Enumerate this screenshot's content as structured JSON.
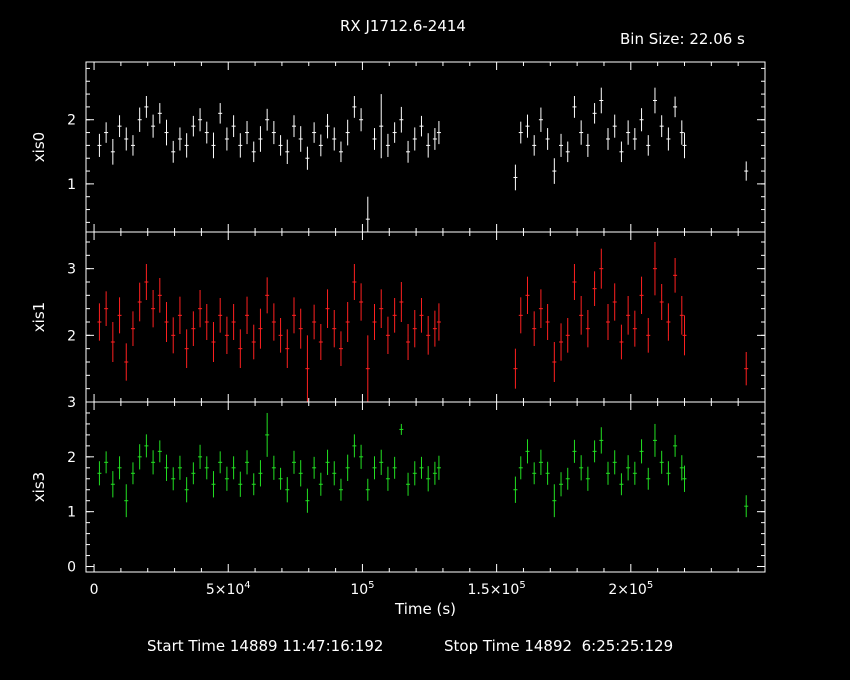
{
  "title": "RX J1712.6-2414",
  "bin_size": "Bin Size: 22.06 s",
  "footer": {
    "start": "Start Time 14889 11:47:16:192",
    "stop": "Stop Time 14892  6:25:25:129"
  },
  "chart_data": {
    "type": "scatter",
    "xlabel": "Time (s)",
    "x_ticks": [
      {
        "value": 0,
        "label": "0",
        "exp": ""
      },
      {
        "value": 50000,
        "label": "5×10",
        "exp": "4"
      },
      {
        "value": 100000,
        "label": "10",
        "exp": "5"
      },
      {
        "value": 150000,
        "label": "1.5×10",
        "exp": "5"
      },
      {
        "value": 200000,
        "label": "2×10",
        "exp": "5"
      }
    ],
    "xlim": [
      -3000,
      250000
    ],
    "series": [
      {
        "name": "xis0",
        "color": "#ffffff",
        "ylim": [
          0.25,
          2.9
        ],
        "y_ticks": [
          1,
          2
        ],
        "x": [
          2000,
          4500,
          7000,
          9500,
          12000,
          14500,
          17000,
          19500,
          22000,
          24500,
          27000,
          29500,
          32000,
          34500,
          37000,
          39500,
          42000,
          44500,
          47000,
          49500,
          52000,
          54500,
          57000,
          59500,
          62000,
          64500,
          67000,
          69500,
          72000,
          74500,
          77000,
          79500,
          82000,
          84500,
          87000,
          89500,
          92000,
          94500,
          97000,
          99500,
          102000,
          104500,
          107000,
          109500,
          112000,
          114500,
          117000,
          119500,
          122000,
          124500,
          127000,
          128500,
          157000,
          159000,
          161500,
          164000,
          166500,
          169000,
          171500,
          174000,
          176500,
          179000,
          181500,
          184000,
          186500,
          189000,
          191500,
          194000,
          196500,
          199000,
          201500,
          204000,
          206500,
          209000,
          211500,
          214000,
          216500,
          219000,
          220000,
          243000
        ],
        "y": [
          1.6,
          1.8,
          1.5,
          1.9,
          1.7,
          1.6,
          2.0,
          2.2,
          1.9,
          2.1,
          1.8,
          1.5,
          1.7,
          1.6,
          1.9,
          2.0,
          1.8,
          1.6,
          2.1,
          1.7,
          1.9,
          1.6,
          1.8,
          1.5,
          1.7,
          2.0,
          1.8,
          1.6,
          1.5,
          1.9,
          1.7,
          1.4,
          1.8,
          1.6,
          1.9,
          1.7,
          1.5,
          1.8,
          2.2,
          2.0,
          0.45,
          1.7,
          1.9,
          1.6,
          1.8,
          2.0,
          1.5,
          1.7,
          1.9,
          1.6,
          1.7,
          1.8,
          1.1,
          1.8,
          1.9,
          1.6,
          2.0,
          1.7,
          1.2,
          1.6,
          1.5,
          2.2,
          1.8,
          1.6,
          2.1,
          2.3,
          1.7,
          1.9,
          1.5,
          1.8,
          1.7,
          2.0,
          1.6,
          2.3,
          1.9,
          1.7,
          2.2,
          1.8,
          1.6,
          1.2
        ],
        "yerr": [
          0.18,
          0.16,
          0.2,
          0.17,
          0.18,
          0.16,
          0.19,
          0.17,
          0.18,
          0.16,
          0.2,
          0.17,
          0.18,
          0.19,
          0.16,
          0.18,
          0.17,
          0.2,
          0.16,
          0.18,
          0.17,
          0.19,
          0.18,
          0.16,
          0.2,
          0.17,
          0.18,
          0.16,
          0.19,
          0.17,
          0.2,
          0.18,
          0.16,
          0.17,
          0.19,
          0.18,
          0.16,
          0.2,
          0.17,
          0.18,
          0.35,
          0.17,
          0.5,
          0.18,
          0.16,
          0.2,
          0.17,
          0.18,
          0.16,
          0.19,
          0.17,
          0.18,
          0.2,
          0.17,
          0.18,
          0.16,
          0.19,
          0.17,
          0.2,
          0.18,
          0.16,
          0.17,
          0.19,
          0.18,
          0.16,
          0.2,
          0.17,
          0.18,
          0.16,
          0.19,
          0.17,
          0.18,
          0.16,
          0.2,
          0.17,
          0.18,
          0.16,
          0.19,
          0.2,
          0.15
        ]
      },
      {
        "name": "xis1",
        "color": "#ff2020",
        "ylim": [
          1.0,
          3.55
        ],
        "y_ticks": [
          2,
          3
        ],
        "x": [
          2000,
          4500,
          7000,
          9500,
          12000,
          14500,
          17000,
          19500,
          22000,
          24500,
          27000,
          29500,
          32000,
          34500,
          37000,
          39500,
          42000,
          44500,
          47000,
          49500,
          52000,
          54500,
          57000,
          59500,
          62000,
          64500,
          67000,
          69500,
          72000,
          74500,
          77000,
          79500,
          82000,
          84500,
          87000,
          89500,
          92000,
          94500,
          97000,
          99500,
          102000,
          104500,
          107000,
          109500,
          112000,
          114500,
          117000,
          119500,
          122000,
          124500,
          127000,
          128500,
          157000,
          159000,
          161500,
          164000,
          166500,
          169000,
          171500,
          174000,
          176500,
          179000,
          181500,
          184000,
          186500,
          189000,
          191500,
          194000,
          196500,
          199000,
          201500,
          204000,
          206500,
          209000,
          211500,
          214000,
          216500,
          219000,
          220000,
          243000
        ],
        "y": [
          2.2,
          2.4,
          1.9,
          2.3,
          1.6,
          2.1,
          2.5,
          2.8,
          2.4,
          2.6,
          2.2,
          2.0,
          2.3,
          1.8,
          2.1,
          2.4,
          2.2,
          1.9,
          2.3,
          2.0,
          2.2,
          1.8,
          2.3,
          1.9,
          2.1,
          2.6,
          2.2,
          2.0,
          1.8,
          2.3,
          2.1,
          1.5,
          2.2,
          1.9,
          2.4,
          2.1,
          1.8,
          2.2,
          2.8,
          2.5,
          1.5,
          2.2,
          2.4,
          2.0,
          2.3,
          2.5,
          1.9,
          2.1,
          2.3,
          2.0,
          2.1,
          2.2,
          1.5,
          2.3,
          2.6,
          2.1,
          2.4,
          2.2,
          1.6,
          1.9,
          2.0,
          2.8,
          2.3,
          2.1,
          2.7,
          3.0,
          2.2,
          2.5,
          1.9,
          2.3,
          2.1,
          2.6,
          2.0,
          3.0,
          2.5,
          2.2,
          2.9,
          2.3,
          2.0,
          1.5
        ],
        "yerr": [
          0.28,
          0.26,
          0.3,
          0.27,
          0.28,
          0.26,
          0.29,
          0.27,
          0.28,
          0.26,
          0.3,
          0.27,
          0.28,
          0.29,
          0.26,
          0.28,
          0.27,
          0.3,
          0.26,
          0.28,
          0.27,
          0.29,
          0.28,
          0.26,
          0.3,
          0.27,
          0.28,
          0.26,
          0.29,
          0.27,
          0.3,
          0.5,
          0.26,
          0.27,
          0.29,
          0.28,
          0.26,
          0.3,
          0.27,
          0.28,
          0.5,
          0.27,
          0.29,
          0.28,
          0.26,
          0.3,
          0.27,
          0.28,
          0.26,
          0.29,
          0.27,
          0.28,
          0.3,
          0.27,
          0.28,
          0.26,
          0.29,
          0.27,
          0.3,
          0.28,
          0.26,
          0.27,
          0.29,
          0.28,
          0.26,
          0.3,
          0.27,
          0.28,
          0.26,
          0.29,
          0.27,
          0.28,
          0.26,
          0.4,
          0.27,
          0.28,
          0.26,
          0.29,
          0.3,
          0.25
        ]
      },
      {
        "name": "xis3",
        "color": "#22e022",
        "ylim": [
          -0.1,
          3.0
        ],
        "y_ticks": [
          0,
          1,
          2,
          3
        ],
        "x": [
          2000,
          4500,
          7000,
          9500,
          12000,
          14500,
          17000,
          19500,
          22000,
          24500,
          27000,
          29500,
          32000,
          34500,
          37000,
          39500,
          42000,
          44500,
          47000,
          49500,
          52000,
          54500,
          57000,
          59500,
          62000,
          64500,
          67000,
          69500,
          72000,
          74500,
          77000,
          79500,
          82000,
          84500,
          87000,
          89500,
          92000,
          94500,
          97000,
          99500,
          102000,
          104500,
          107000,
          109500,
          112000,
          114500,
          117000,
          119500,
          122000,
          124500,
          127000,
          128500,
          157000,
          159000,
          161500,
          164000,
          166500,
          169000,
          171500,
          174000,
          176500,
          179000,
          181500,
          184000,
          186500,
          189000,
          191500,
          194000,
          196500,
          199000,
          201500,
          204000,
          206500,
          209000,
          211500,
          214000,
          216500,
          219000,
          220000,
          243000
        ],
        "y": [
          1.7,
          1.9,
          1.5,
          1.8,
          1.2,
          1.7,
          2.0,
          2.2,
          1.9,
          2.1,
          1.8,
          1.6,
          1.8,
          1.4,
          1.7,
          2.0,
          1.8,
          1.5,
          1.9,
          1.6,
          1.8,
          1.5,
          1.9,
          1.5,
          1.7,
          2.4,
          1.8,
          1.6,
          1.4,
          1.9,
          1.7,
          1.2,
          1.8,
          1.5,
          1.9,
          1.7,
          1.4,
          1.8,
          2.2,
          2.0,
          1.4,
          1.8,
          1.9,
          1.6,
          1.8,
          2.5,
          1.5,
          1.7,
          1.8,
          1.6,
          1.7,
          1.8,
          1.4,
          1.8,
          2.1,
          1.7,
          1.9,
          1.7,
          1.2,
          1.5,
          1.6,
          2.1,
          1.8,
          1.6,
          2.1,
          2.3,
          1.7,
          1.9,
          1.5,
          1.8,
          1.7,
          2.1,
          1.6,
          2.3,
          1.9,
          1.7,
          2.2,
          1.8,
          1.6,
          1.1
        ],
        "yerr": [
          0.22,
          0.2,
          0.24,
          0.21,
          0.3,
          0.2,
          0.23,
          0.21,
          0.22,
          0.2,
          0.24,
          0.21,
          0.22,
          0.23,
          0.2,
          0.22,
          0.21,
          0.24,
          0.2,
          0.22,
          0.21,
          0.23,
          0.22,
          0.2,
          0.24,
          0.4,
          0.22,
          0.2,
          0.23,
          0.21,
          0.24,
          0.22,
          0.2,
          0.21,
          0.23,
          0.22,
          0.2,
          0.24,
          0.21,
          0.22,
          0.2,
          0.21,
          0.23,
          0.22,
          0.2,
          0.1,
          0.21,
          0.22,
          0.2,
          0.23,
          0.21,
          0.22,
          0.24,
          0.21,
          0.22,
          0.2,
          0.23,
          0.21,
          0.3,
          0.22,
          0.2,
          0.21,
          0.23,
          0.22,
          0.2,
          0.24,
          0.21,
          0.22,
          0.2,
          0.23,
          0.21,
          0.22,
          0.2,
          0.3,
          0.21,
          0.22,
          0.2,
          0.23,
          0.24,
          0.2
        ]
      }
    ]
  }
}
